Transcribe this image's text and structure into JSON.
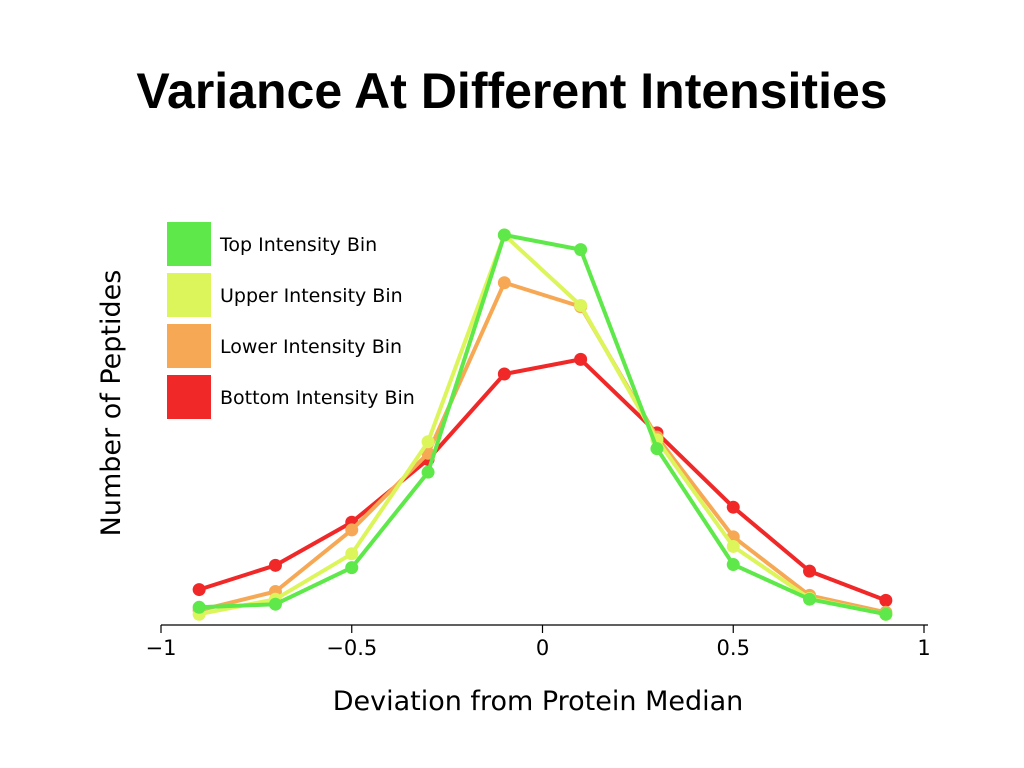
{
  "slide": {
    "title": "Variance At Different Intensities"
  },
  "chart_data": {
    "type": "line",
    "xlabel": "Deviation from Protein Median",
    "ylabel": "Number of Peptides",
    "xlim": [
      -1,
      1
    ],
    "ylim": [
      0,
      100
    ],
    "x_ticks": [
      -1,
      -0.5,
      0,
      0.5,
      1
    ],
    "x_tick_labels": [
      "−1",
      "−0.5",
      "0",
      "0.5",
      "1"
    ],
    "y_ticks_visible": false,
    "grid": false,
    "legend_position": "top-left",
    "x": [
      -0.9,
      -0.7,
      -0.5,
      -0.3,
      -0.1,
      0.1,
      0.3,
      0.5,
      0.7,
      0.9
    ],
    "series": [
      {
        "name": "Top Intensity Bin",
        "color": "#5ee84a",
        "values": [
          3.3,
          4.1,
          13.6,
          38.4,
          100,
          96.2,
          44.5,
          14.4,
          5.4,
          1.5
        ]
      },
      {
        "name": "Upper Intensity Bin",
        "color": "#dcf55a",
        "values": [
          1.5,
          5.4,
          17.2,
          46.3,
          100,
          81.7,
          46.8,
          19.1,
          5.6,
          1.5
        ]
      },
      {
        "name": "Lower Intensity Bin",
        "color": "#f7a855",
        "values": [
          2.5,
          7.4,
          23.4,
          43.3,
          87.6,
          81.4,
          47.5,
          21.6,
          6.4,
          2.0
        ]
      },
      {
        "name": "Bottom Intensity Bin",
        "color": "#f02828",
        "values": [
          7.9,
          14.2,
          25.4,
          41.7,
          63.9,
          67.7,
          48.6,
          29.3,
          12.7,
          5.1
        ]
      }
    ]
  }
}
